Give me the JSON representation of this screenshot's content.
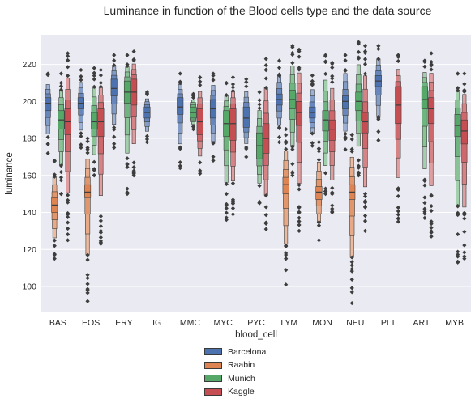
{
  "chart_data": {
    "type": "boxen",
    "title": "Luminance in function of the Blood cells type and the data source",
    "xlabel": "blood_cell",
    "ylabel": "luminance",
    "ylim": [
      86,
      236
    ],
    "yticks": [
      100,
      120,
      140,
      160,
      180,
      200,
      220
    ],
    "categories": [
      "BAS",
      "EOS",
      "ERY",
      "IG",
      "MMC",
      "MYC",
      "PYC",
      "LYM",
      "MON",
      "NEU",
      "PLT",
      "ART",
      "MYB"
    ],
    "legend": "bottom-center",
    "series": [
      {
        "name": "Barcelona",
        "color": "#4c72b0",
        "boxes": [
          {
            "category": "BAS",
            "q1": 195,
            "median": 199,
            "q3": 202,
            "min": 172,
            "max": 215
          },
          {
            "category": "EOS",
            "q1": 196,
            "median": 199,
            "q3": 202,
            "min": 175,
            "max": 217
          },
          {
            "category": "ERY",
            "q1": 203,
            "median": 207,
            "q3": 212,
            "min": 175,
            "max": 225
          },
          {
            "category": "IG",
            "q1": 191,
            "median": 194,
            "q3": 197,
            "min": 178,
            "max": 205
          },
          {
            "category": "MMC",
            "q1": 193,
            "median": 197,
            "q3": 202,
            "min": 164,
            "max": 215
          },
          {
            "category": "MYC",
            "q1": 191,
            "median": 196,
            "q3": 201,
            "min": 168,
            "max": 215
          },
          {
            "category": "PYC",
            "q1": 186,
            "median": 191,
            "q3": 197,
            "min": 170,
            "max": 212
          },
          {
            "category": "LYM",
            "q1": 198,
            "median": 201,
            "q3": 204,
            "min": 178,
            "max": 222
          },
          {
            "category": "MON",
            "q1": 191,
            "median": 194,
            "q3": 197,
            "min": 176,
            "max": 214
          },
          {
            "category": "NEU",
            "q1": 196,
            "median": 200,
            "q3": 203,
            "min": 174,
            "max": 225
          },
          {
            "category": "PLT",
            "q1": 208,
            "median": 211,
            "q3": 214,
            "min": 179,
            "max": 230
          }
        ]
      },
      {
        "name": "Raabin",
        "color": "#dd8452",
        "boxes": [
          {
            "category": "BAS",
            "q1": 140,
            "median": 144,
            "q3": 148,
            "min": 115,
            "max": 168
          },
          {
            "category": "EOS",
            "q1": 148,
            "median": 151,
            "q3": 155,
            "min": 92,
            "max": 180
          },
          {
            "category": "LYM",
            "q1": 150,
            "median": 155,
            "q3": 159,
            "min": 101,
            "max": 185
          },
          {
            "category": "MON",
            "q1": 147,
            "median": 151,
            "q3": 154,
            "min": 125,
            "max": 178
          },
          {
            "category": "NEU",
            "q1": 147,
            "median": 151,
            "q3": 155,
            "min": 91,
            "max": 182
          }
        ]
      },
      {
        "name": "Munich",
        "color": "#55a868",
        "boxes": [
          {
            "category": "BAS",
            "q1": 185,
            "median": 190,
            "q3": 195,
            "min": 150,
            "max": 215
          },
          {
            "category": "EOS",
            "q1": 185,
            "median": 189,
            "q3": 194,
            "min": 160,
            "max": 218
          },
          {
            "category": "ERY",
            "q1": 199,
            "median": 205,
            "q3": 211,
            "min": 150,
            "max": 225
          },
          {
            "category": "MMC",
            "q1": 191,
            "median": 194,
            "q3": 197,
            "min": 185,
            "max": 204
          },
          {
            "category": "MYC",
            "q1": 181,
            "median": 188,
            "q3": 195,
            "min": 136,
            "max": 210
          },
          {
            "category": "PYC",
            "q1": 169,
            "median": 176,
            "q3": 183,
            "min": 145,
            "max": 205
          },
          {
            "category": "LYM",
            "q1": 196,
            "median": 201,
            "q3": 206,
            "min": 160,
            "max": 230
          },
          {
            "category": "MON",
            "q1": 184,
            "median": 190,
            "q3": 195,
            "min": 150,
            "max": 225
          },
          {
            "category": "NEU",
            "q1": 195,
            "median": 200,
            "q3": 205,
            "min": 160,
            "max": 232
          },
          {
            "category": "ART",
            "q1": 196,
            "median": 201,
            "q3": 208,
            "min": 137,
            "max": 222
          },
          {
            "category": "MYB",
            "q1": 181,
            "median": 187,
            "q3": 193,
            "min": 113,
            "max": 215
          }
        ]
      },
      {
        "name": "Kaggle",
        "color": "#c44e52",
        "boxes": [
          {
            "category": "BAS",
            "q1": 182,
            "median": 189,
            "q3": 196,
            "min": 125,
            "max": 226
          },
          {
            "category": "EOS",
            "q1": 181,
            "median": 189,
            "q3": 196,
            "min": 123,
            "max": 217
          },
          {
            "category": "ERY",
            "q1": 198,
            "median": 205,
            "q3": 212,
            "min": 160,
            "max": 227
          },
          {
            "category": "MMC",
            "q1": 182,
            "median": 189,
            "q3": 196,
            "min": 161,
            "max": 213
          },
          {
            "category": "MYC",
            "q1": 179,
            "median": 188,
            "q3": 196,
            "min": 139,
            "max": 213
          },
          {
            "category": "PYC",
            "q1": 172,
            "median": 180,
            "q3": 188,
            "min": 131,
            "max": 223
          },
          {
            "category": "LYM",
            "q1": 187,
            "median": 194,
            "q3": 200,
            "min": 130,
            "max": 228
          },
          {
            "category": "MON",
            "q1": 179,
            "median": 185,
            "q3": 190,
            "min": 140,
            "max": 221
          },
          {
            "category": "NEU",
            "q1": 183,
            "median": 189,
            "q3": 194,
            "min": 130,
            "max": 230
          },
          {
            "category": "PLT",
            "q1": 188,
            "median": 198,
            "q3": 208,
            "min": 135,
            "max": 225
          },
          {
            "category": "ART",
            "q1": 188,
            "median": 196,
            "q3": 202,
            "min": 127,
            "max": 226
          },
          {
            "category": "MYB",
            "q1": 177,
            "median": 184,
            "q3": 190,
            "min": 115,
            "max": 215
          }
        ]
      }
    ]
  }
}
